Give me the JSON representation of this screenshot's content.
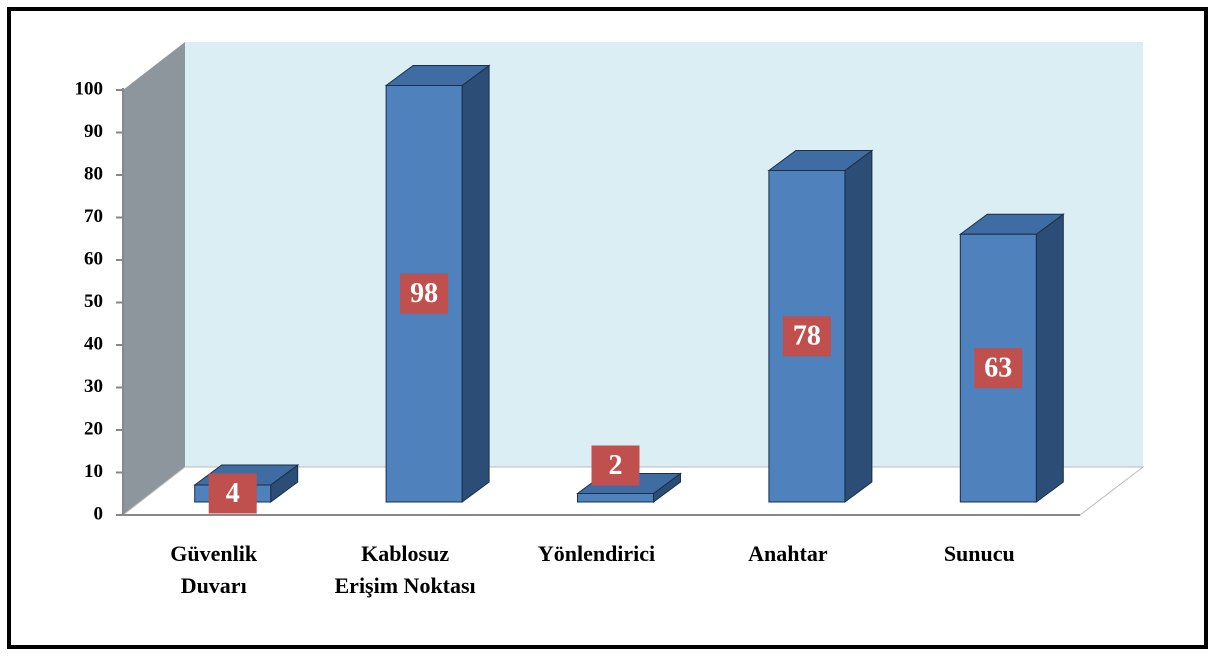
{
  "chart_data": {
    "type": "bar",
    "categories": [
      "Güvenlik Duvarı",
      "Kablosuz Erişim Noktası",
      "Yönlendirici",
      "Anahtar",
      "Sunucu"
    ],
    "values": [
      4,
      98,
      2,
      78,
      63
    ],
    "color": "#4f81bd",
    "ylim": [
      0,
      100
    ],
    "yticks": [
      0,
      10,
      20,
      30,
      40,
      50,
      60,
      70,
      80,
      90,
      100
    ]
  }
}
